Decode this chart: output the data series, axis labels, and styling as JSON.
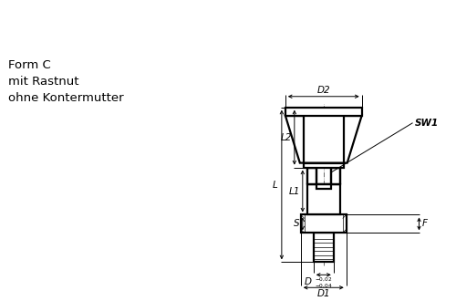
{
  "bg_color": "#ffffff",
  "line_color": "#000000",
  "title_lines": [
    "Form C",
    "mit Rastnut",
    "ohne Kontermutter"
  ],
  "labels": {
    "D2": "D2",
    "L": "L",
    "L2": "L2",
    "L1": "L1",
    "S": "S",
    "D1": "D1",
    "SW1": "SW1",
    "F": "F"
  },
  "figsize": [
    5.0,
    3.3
  ],
  "dpi": 100
}
